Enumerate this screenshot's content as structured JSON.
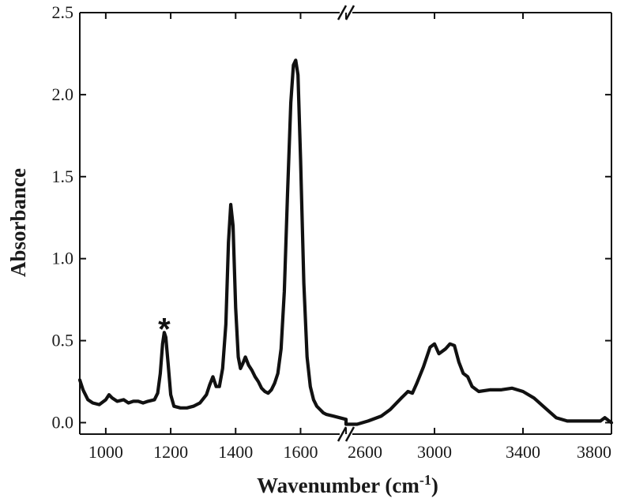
{
  "chart_data": {
    "type": "line",
    "title": "",
    "xlabel": "Wavenumber (cm",
    "xlabel_sup": "-1",
    "xlabel_tail": ")",
    "ylabel": "Absorbance",
    "ylim": [
      -0.07,
      2.5
    ],
    "yticks": [
      "0.0",
      "0.5",
      "1.0",
      "1.5",
      "2.0",
      "2.5"
    ],
    "y_tick_values": [
      0.0,
      0.5,
      1.0,
      1.5,
      2.0,
      2.5
    ],
    "x_axis_broken": true,
    "x_segments": [
      {
        "range": [
          920,
          1740
        ],
        "ticks": [
          1000,
          1200,
          1400,
          1600
        ]
      },
      {
        "range": [
          2600,
          3800
        ],
        "ticks": [
          2600,
          3000,
          3400,
          3800
        ]
      }
    ],
    "grid": false,
    "annotations": [
      {
        "text": "*",
        "x": 1180,
        "y": 0.63
      }
    ],
    "series": [
      {
        "x": [
          920,
          930,
          945,
          960,
          980,
          1000,
          1010,
          1020,
          1035,
          1055,
          1070,
          1085,
          1100,
          1115,
          1130,
          1150,
          1160,
          1168,
          1175,
          1180,
          1185,
          1192,
          1200,
          1210,
          1230,
          1250,
          1270,
          1290,
          1310,
          1320,
          1330,
          1340,
          1350,
          1360,
          1370,
          1378,
          1385,
          1392,
          1400,
          1408,
          1415,
          1422,
          1430,
          1440,
          1450,
          1460,
          1470,
          1480,
          1490,
          1500,
          1510,
          1520,
          1530,
          1540,
          1550,
          1560,
          1570,
          1578,
          1585,
          1592,
          1600,
          1610,
          1620,
          1630,
          1640,
          1650,
          1660,
          1670,
          1680,
          1700,
          1720,
          1740,
          2600,
          2650,
          2700,
          2760,
          2800,
          2850,
          2880,
          2900,
          2920,
          2950,
          2980,
          3000,
          3020,
          3050,
          3070,
          3090,
          3110,
          3130,
          3150,
          3170,
          3200,
          3250,
          3300,
          3350,
          3400,
          3450,
          3500,
          3550,
          3600,
          3650,
          3700,
          3750,
          3770,
          3800
        ],
        "values": [
          0.26,
          0.2,
          0.14,
          0.12,
          0.11,
          0.14,
          0.17,
          0.15,
          0.13,
          0.14,
          0.12,
          0.13,
          0.13,
          0.12,
          0.13,
          0.14,
          0.18,
          0.3,
          0.48,
          0.55,
          0.52,
          0.36,
          0.17,
          0.1,
          0.09,
          0.09,
          0.1,
          0.12,
          0.17,
          0.23,
          0.28,
          0.22,
          0.22,
          0.33,
          0.6,
          1.1,
          1.33,
          1.2,
          0.7,
          0.4,
          0.33,
          0.36,
          0.4,
          0.35,
          0.32,
          0.28,
          0.25,
          0.21,
          0.19,
          0.18,
          0.2,
          0.24,
          0.3,
          0.45,
          0.8,
          1.4,
          1.95,
          2.18,
          2.21,
          2.12,
          1.6,
          0.85,
          0.4,
          0.22,
          0.14,
          0.1,
          0.08,
          0.06,
          0.05,
          0.04,
          0.03,
          0.02,
          -0.01,
          -0.01,
          0.01,
          0.04,
          0.08,
          0.15,
          0.19,
          0.18,
          0.24,
          0.34,
          0.46,
          0.48,
          0.42,
          0.45,
          0.48,
          0.47,
          0.37,
          0.3,
          0.28,
          0.22,
          0.19,
          0.2,
          0.2,
          0.21,
          0.19,
          0.15,
          0.09,
          0.03,
          0.01,
          0.01,
          0.01,
          0.01,
          0.03,
          0.0
        ]
      }
    ]
  }
}
